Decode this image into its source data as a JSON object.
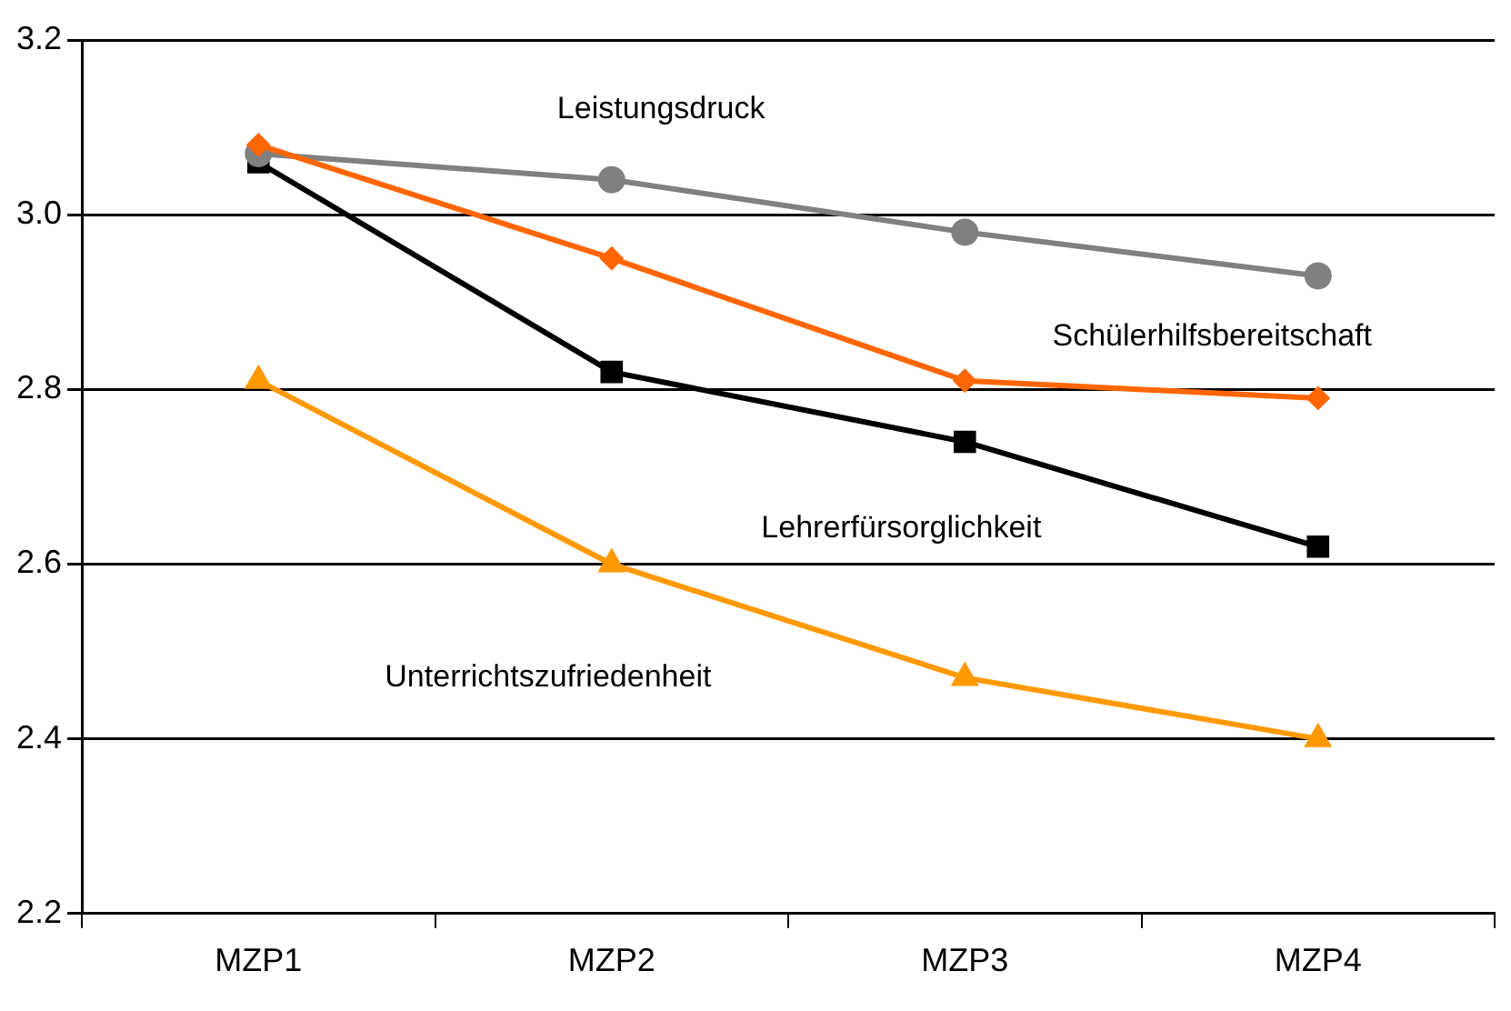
{
  "chart_data": {
    "type": "line",
    "categories": [
      "MZP1",
      "MZP2",
      "MZP3",
      "MZP4"
    ],
    "series": [
      {
        "name": "Leistungsdruck",
        "color": "#808080",
        "marker": "circle",
        "values": [
          3.07,
          3.04,
          2.98,
          2.93
        ]
      },
      {
        "name": "Schülerhilfsbereitschaft",
        "color": "#ff6600",
        "marker": "diamond",
        "values": [
          3.08,
          2.95,
          2.81,
          2.79
        ]
      },
      {
        "name": "Lehrerfürsorglichkeit",
        "color": "#000000",
        "marker": "square",
        "values": [
          3.06,
          2.82,
          2.74,
          2.62
        ]
      },
      {
        "name": "Unterrichtszufriedenheit",
        "color": "#ff9900",
        "marker": "triangle",
        "values": [
          2.81,
          2.6,
          2.47,
          2.4
        ]
      }
    ],
    "ylim": [
      2.2,
      3.2
    ],
    "yticks": [
      {
        "value": 2.2,
        "label": "2.2"
      },
      {
        "value": 2.4,
        "label": "2.4"
      },
      {
        "value": 2.6,
        "label": "2.6"
      },
      {
        "value": 2.8,
        "label": "2.8"
      },
      {
        "value": 3.0,
        "label": "3.0"
      },
      {
        "value": 3.2,
        "label": "3.2"
      }
    ],
    "grid": "y",
    "legend": false,
    "line_style": "solid"
  }
}
